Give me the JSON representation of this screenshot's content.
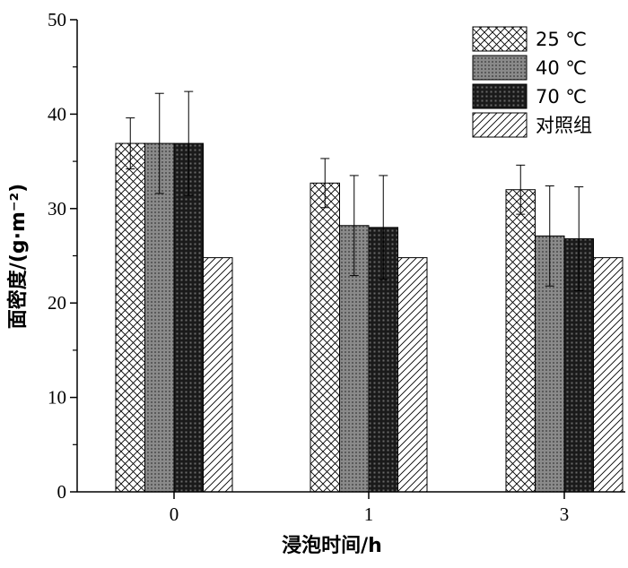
{
  "chart_data": {
    "type": "bar",
    "xlabel": "浸泡时间/h",
    "ylabel": "面密度/(g·m⁻²)",
    "categories": [
      "0",
      "1",
      "3"
    ],
    "ylim": [
      0,
      50
    ],
    "yticks": [
      0,
      10,
      20,
      30,
      40,
      50
    ],
    "legend_position": "top-right",
    "series": [
      {
        "name": "25 ℃",
        "pattern": "crosshatch",
        "values": [
          36.9,
          32.7,
          32.0
        ],
        "errors": [
          2.7,
          2.6,
          2.6
        ]
      },
      {
        "name": "40 ℃",
        "pattern": "gray-dots",
        "values": [
          36.9,
          28.2,
          27.1
        ],
        "errors": [
          5.3,
          5.3,
          5.3
        ]
      },
      {
        "name": "70 ℃",
        "pattern": "dark-grid",
        "values": [
          36.9,
          28.0,
          26.8
        ],
        "errors": [
          5.5,
          5.5,
          5.5
        ]
      },
      {
        "name": "对照组",
        "pattern": "diagonal",
        "values": [
          24.8,
          24.8,
          24.8
        ],
        "errors": [
          0,
          0,
          0
        ]
      }
    ]
  }
}
